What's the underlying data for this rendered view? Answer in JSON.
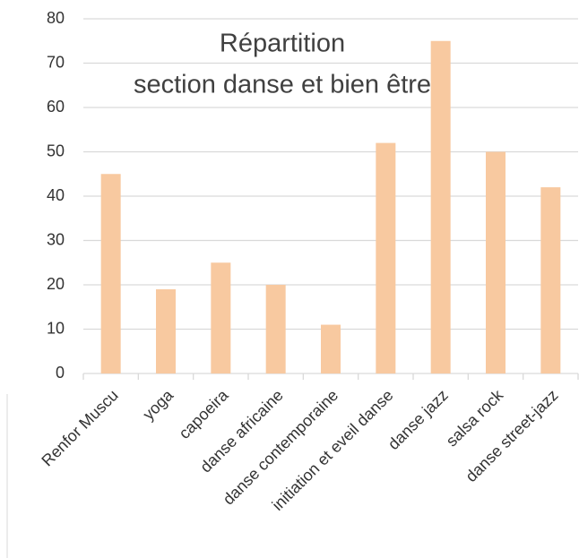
{
  "chart_data": {
    "type": "bar",
    "title": [
      "Répartition",
      "section danse et bien être"
    ],
    "categories": [
      "Renfor Muscu",
      "yoga",
      "capoeira",
      "danse africaine",
      "danse contemporaine",
      "initiation et eveil danse",
      "danse jazz",
      "salsa rock",
      "danse street-jazz"
    ],
    "values": [
      45,
      19,
      25,
      20,
      11,
      52,
      75,
      50,
      42
    ],
    "color": "#f8c9a0",
    "ylim": [
      0,
      80
    ],
    "yticks": [
      0,
      10,
      20,
      30,
      40,
      50,
      60,
      70,
      80
    ],
    "grid": true
  }
}
